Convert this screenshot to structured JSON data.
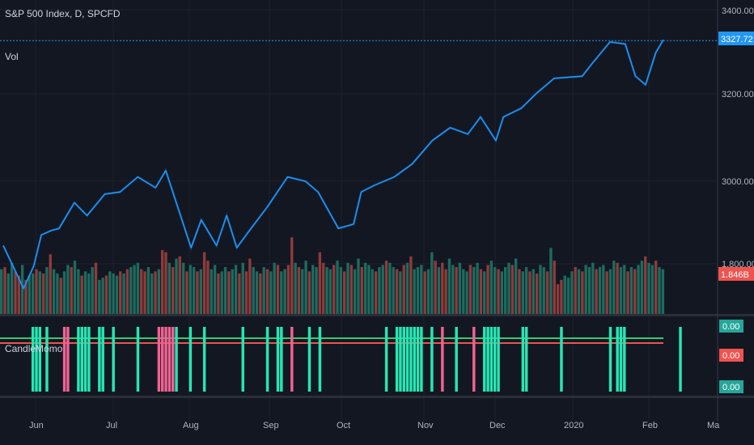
{
  "legend": {
    "main_title": "S&P 500 Index, D, SPCFD",
    "vol_label": "Vol",
    "indicator_label": "CandleMomo"
  },
  "price_axis": {
    "ticks": [
      "3400.00",
      "3200.00",
      "3000.00",
      "1.800.00"
    ],
    "last_price": "3327.72",
    "volume_badge": "1.846B"
  },
  "indicator_axis": {
    "badges": [
      "0.00",
      "0.00",
      "0.00"
    ]
  },
  "time_axis": {
    "labels": [
      "Jun",
      "Jul",
      "Aug",
      "Sep",
      "Oct",
      "Nov",
      "Dec",
      "2020",
      "Feb",
      "Ma"
    ]
  },
  "colors": {
    "background": "#131722",
    "line": "#2196f3",
    "vol_up": "#1d6b5e",
    "vol_down": "#8e3b3b",
    "bar_green": "#26e6b4",
    "bar_pink": "#f06292",
    "green_line": "#2ecc71",
    "red_line": "#ef5350",
    "badge_blue": "#2196f3",
    "badge_red": "#ef5350",
    "badge_green": "#26a69a"
  },
  "chart_data": [
    {
      "type": "line",
      "x": [
        "2019-05-23",
        "2019-05-31",
        "2019-06-04",
        "2019-06-07",
        "2019-06-11",
        "2019-06-14",
        "2019-06-20",
        "2019-06-25",
        "2019-07-02",
        "2019-07-08",
        "2019-07-15",
        "2019-07-22",
        "2019-07-26",
        "2019-08-05",
        "2019-08-09",
        "2019-08-15",
        "2019-08-19",
        "2019-08-23",
        "2019-08-28",
        "2019-09-04",
        "2019-09-12",
        "2019-09-19",
        "2019-09-24",
        "2019-10-02",
        "2019-10-08",
        "2019-10-11",
        "2019-10-16",
        "2019-10-24",
        "2019-10-31",
        "2019-11-08",
        "2019-11-15",
        "2019-11-22",
        "2019-11-27",
        "2019-12-03",
        "2019-12-06",
        "2019-12-13",
        "2019-12-19",
        "2019-12-26",
        "2020-01-06",
        "2020-01-10",
        "2020-01-17",
        "2020-01-23",
        "2020-01-27",
        "2020-01-31",
        "2020-02-04",
        "2020-02-07"
      ],
      "y": [
        2850,
        2750,
        2802,
        2875,
        2885,
        2890,
        2950,
        2920,
        2970,
        2975,
        3010,
        2985,
        3025,
        2845,
        2910,
        2850,
        2920,
        2845,
        2885,
        2940,
        3010,
        3000,
        2975,
        2890,
        2900,
        2975,
        2990,
        3010,
        3040,
        3095,
        3125,
        3110,
        3150,
        3095,
        3150,
        3170,
        3205,
        3240,
        3245,
        3275,
        3325,
        3320,
        3245,
        3225,
        3300,
        3330
      ],
      "ylim": [
        2700,
        3420
      ],
      "yticks": [
        3000,
        3200,
        3400
      ],
      "last": 3327.72
    },
    {
      "type": "bar",
      "series": [
        {
          "values": [
            2.1,
            2.2,
            1.9,
            2.4,
            2.0,
            1.8,
            2.3,
            1.6,
            1.8,
            1.9,
            2.1,
            2.0,
            1.9,
            2.2,
            2.8,
            2.1,
            1.9,
            1.7,
            2.0,
            2.3,
            2.2,
            2.5,
            2.1,
            1.8,
            2.0,
            1.9,
            2.2,
            2.4,
            1.6,
            1.7,
            1.8,
            2.0,
            1.9,
            1.8,
            2.0,
            1.9,
            2.1,
            2.2,
            2.3,
            2.4,
            2.1,
            2.0,
            2.2,
            1.9,
            2.0,
            2.1,
            3.0,
            2.9,
            2.4,
            2.2,
            2.6,
            2.7,
            2.4,
            2.0,
            2.3,
            2.2,
            2.0,
            2.1,
            2.9,
            2.5,
            2.1,
            2.3,
            1.9,
            2.0,
            2.2,
            2.0,
            2.1,
            2.3,
            1.9,
            2.4,
            2.0,
            2.6,
            2.2,
            2.0,
            1.9,
            2.2,
            2.1,
            2.0,
            2.4,
            2.3,
            2.0,
            2.1,
            2.3,
            3.6,
            2.4,
            2.2,
            2.1,
            2.5,
            2.0,
            2.3,
            2.2,
            2.9,
            2.4,
            2.2,
            2.1,
            2.3,
            2.5,
            2.2,
            2.0,
            2.4,
            2.3,
            2.1,
            2.6,
            2.2,
            2.4,
            2.3,
            2.1,
            2.0,
            2.2,
            2.3,
            2.5,
            2.4,
            2.2,
            2.1,
            2.0,
            2.3,
            2.4,
            2.7,
            2.1,
            2.2,
            2.3,
            2.0,
            2.1,
            2.9,
            2.5,
            2.2,
            2.4,
            2.1,
            2.6,
            2.3,
            2.2,
            2.4,
            2.1,
            2.0,
            2.3,
            2.2,
            2.4,
            2.1,
            2.0,
            2.3,
            2.5,
            2.2,
            2.1,
            2.0,
            2.2,
            2.4,
            2.3,
            2.6,
            2.1,
            2.0,
            2.2,
            2.0,
            2.1,
            1.9,
            2.3,
            2.2,
            2.0,
            3.1,
            2.5,
            1.4,
            1.6,
            1.8,
            1.7,
            2.0,
            2.2,
            2.1,
            2.0,
            2.3,
            2.2,
            2.4,
            2.1,
            2.2,
            2.3,
            2.0,
            2.1,
            2.5,
            2.4,
            2.2,
            2.3,
            2.0,
            2.2,
            2.1,
            2.3,
            2.5,
            2.7,
            2.4,
            2.3,
            2.5,
            2.2,
            2.1
          ]
        },
        {
          "down": [
            0,
            1,
            0,
            0,
            1,
            1,
            0,
            1,
            0,
            0,
            1,
            0,
            1,
            0,
            1,
            0,
            0,
            1,
            0,
            0,
            1,
            0,
            0,
            1,
            0,
            0,
            0,
            1,
            0,
            0,
            1,
            0,
            0,
            0,
            1,
            0,
            1,
            0,
            0,
            0,
            1,
            1,
            0,
            0,
            1,
            0,
            1,
            1,
            0,
            1,
            0,
            1,
            0,
            1,
            0,
            0,
            1,
            0,
            1,
            1,
            0,
            0,
            1,
            0,
            0,
            1,
            0,
            0,
            1,
            0,
            1,
            1,
            0,
            0,
            1,
            0,
            1,
            0,
            0,
            1,
            0,
            0,
            1,
            1,
            0,
            1,
            0,
            0,
            1,
            0,
            0,
            1,
            1,
            0,
            0,
            1,
            0,
            0,
            1,
            0,
            1,
            0,
            0,
            1,
            0,
            0,
            0,
            1,
            0,
            0,
            1,
            0,
            0,
            1,
            0,
            1,
            0,
            1,
            0,
            0,
            0,
            1,
            0,
            0,
            1,
            0,
            1,
            1,
            0,
            0,
            1,
            0,
            0,
            0,
            1,
            0,
            0,
            1,
            0,
            1,
            0,
            0,
            1,
            0,
            0,
            0,
            1,
            0,
            1,
            0,
            0,
            1,
            0,
            1,
            0,
            0,
            1,
            0,
            1,
            1,
            1,
            0,
            0,
            0,
            1,
            0,
            1,
            0,
            0,
            0,
            1,
            0,
            0,
            1,
            0,
            0,
            1,
            0,
            0,
            1,
            0,
            1,
            0,
            0,
            1,
            0,
            0,
            1,
            0,
            0,
            0,
            1,
            1,
            0
          ]
        }
      ]
    },
    {
      "type": "bar",
      "series": [
        {
          "x": [
            9,
            10,
            11,
            13,
            18,
            19,
            22,
            23,
            24,
            25,
            28,
            29,
            32,
            39,
            45,
            46,
            47,
            48,
            49,
            50,
            54,
            58,
            69,
            76,
            79,
            80,
            83,
            88,
            91,
            110,
            113,
            114,
            115,
            116,
            117,
            118,
            119,
            120,
            123,
            126,
            130,
            135,
            138,
            139,
            140,
            141,
            142,
            149,
            150,
            160,
            174,
            176,
            177,
            178,
            194
          ],
          "pink": [
            18,
            19,
            45,
            46,
            47,
            48,
            49,
            83,
            126,
            135
          ]
        }
      ]
    }
  ]
}
